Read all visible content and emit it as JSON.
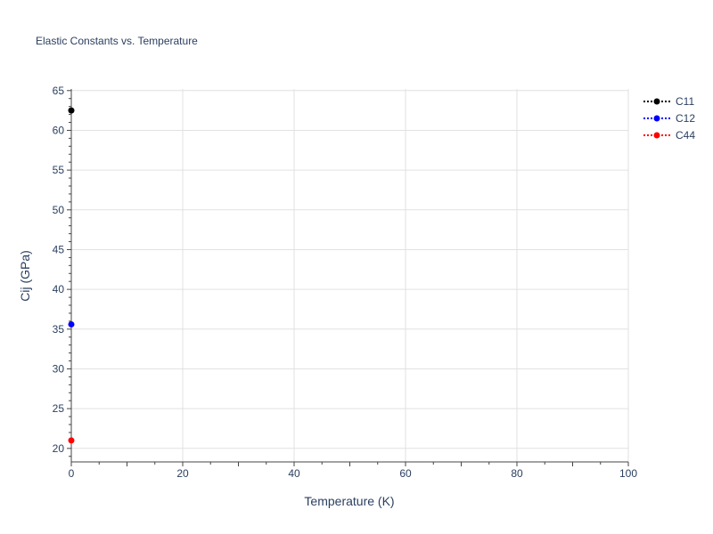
{
  "chart_data": {
    "type": "scatter",
    "mode": "lines+markers",
    "title": "Elastic Constants vs. Temperature",
    "xlabel": "Temperature (K)",
    "ylabel": "Cij (GPa)",
    "xlim": [
      0,
      100
    ],
    "ylim": [
      18.3,
      65.2
    ],
    "xticks": [
      0,
      20,
      40,
      60,
      80,
      100
    ],
    "yticks": [
      20,
      25,
      30,
      35,
      40,
      45,
      50,
      55,
      60,
      65
    ],
    "grid": true,
    "legend_placement": "top-right",
    "series": [
      {
        "name": "C11",
        "color": "#000000",
        "x": [
          0
        ],
        "y": [
          62.5
        ]
      },
      {
        "name": "C12",
        "color": "#0000ff",
        "x": [
          0
        ],
        "y": [
          35.6
        ]
      },
      {
        "name": "C44",
        "color": "#ff0000",
        "x": [
          0
        ],
        "y": [
          21.0
        ]
      }
    ]
  }
}
